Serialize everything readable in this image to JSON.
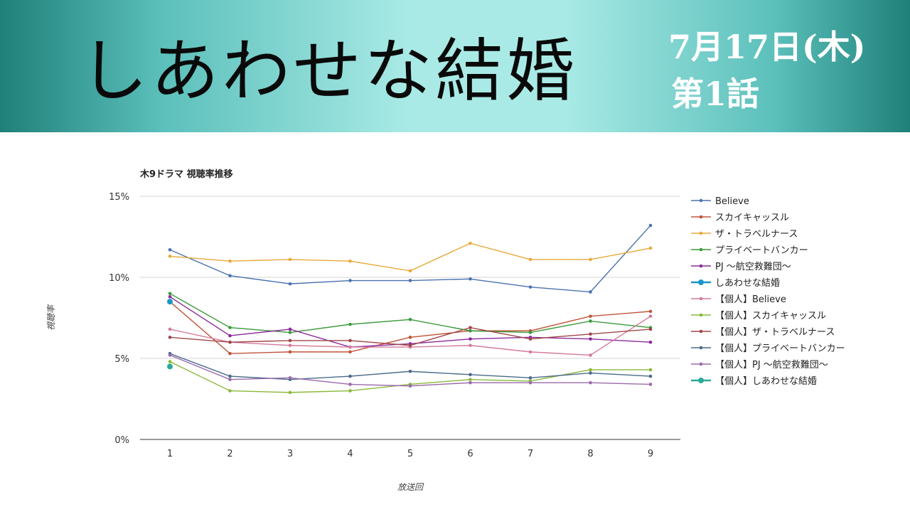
{
  "header": {
    "show_title": "しあわせな結婚",
    "air_date": "7月17日(木)",
    "episode": "第1話"
  },
  "chart_data": {
    "type": "line",
    "title": "木9ドラマ 視聴率推移",
    "xlabel": "放送回",
    "ylabel": "視聴率",
    "categories": [
      "1",
      "2",
      "3",
      "4",
      "5",
      "6",
      "7",
      "8",
      "9"
    ],
    "ylim": [
      0,
      15
    ],
    "yticks": [
      "0%",
      "5%",
      "10%",
      "15%"
    ],
    "grid": true,
    "legend_position": "right",
    "series": [
      {
        "name": "Believe",
        "color": "#4a72b0",
        "values": [
          11.7,
          10.1,
          9.6,
          9.8,
          9.8,
          9.9,
          9.4,
          9.1,
          13.2
        ]
      },
      {
        "name": "スカイキャッスル",
        "color": "#c0553a",
        "values": [
          8.5,
          5.3,
          5.4,
          5.4,
          6.3,
          6.7,
          6.7,
          7.6,
          7.9
        ]
      },
      {
        "name": "ザ・トラベルナース",
        "color": "#e8a93a",
        "values": [
          11.3,
          11.0,
          11.1,
          11.0,
          10.4,
          12.1,
          11.1,
          11.1,
          11.8
        ]
      },
      {
        "name": "プライベートバンカー",
        "color": "#3a9a3a",
        "values": [
          9.0,
          6.9,
          6.6,
          7.1,
          7.4,
          6.7,
          6.6,
          7.3,
          6.9
        ]
      },
      {
        "name": "PJ 〜航空救難団〜",
        "color": "#8a2a9a",
        "values": [
          8.8,
          6.4,
          6.8,
          5.7,
          5.9,
          6.2,
          6.3,
          6.2,
          6.0
        ]
      },
      {
        "name": "しあわせな結婚",
        "color": "#1a96c8",
        "values": [
          8.5,
          null,
          null,
          null,
          null,
          null,
          null,
          null,
          null
        ],
        "highlight": true
      },
      {
        "name": "【個人】Believe",
        "color": "#d47a9a",
        "values": [
          6.8,
          6.0,
          5.8,
          5.7,
          5.7,
          5.8,
          5.4,
          5.2,
          7.6
        ]
      },
      {
        "name": "【個人】スカイキャッスル",
        "color": "#8ab83a",
        "values": [
          4.8,
          3.0,
          2.9,
          3.0,
          3.4,
          3.7,
          3.6,
          4.3,
          4.3
        ]
      },
      {
        "name": "【個人】ザ・トラベルナース",
        "color": "#a0464a",
        "values": [
          6.3,
          6.0,
          6.1,
          6.1,
          5.8,
          6.9,
          6.2,
          6.5,
          6.8
        ]
      },
      {
        "name": "【個人】プライベートバンカー",
        "color": "#4a6a8a",
        "values": [
          5.3,
          3.9,
          3.7,
          3.9,
          4.2,
          4.0,
          3.8,
          4.1,
          3.9
        ]
      },
      {
        "name": "【個人】PJ 〜航空救難団〜",
        "color": "#9a6aaa",
        "values": [
          5.2,
          3.7,
          3.8,
          3.4,
          3.3,
          3.5,
          3.5,
          3.5,
          3.4
        ]
      },
      {
        "name": "【個人】しあわせな結婚",
        "color": "#2aaa9a",
        "values": [
          4.5,
          null,
          null,
          null,
          null,
          null,
          null,
          null,
          null
        ],
        "highlight": true
      }
    ]
  }
}
